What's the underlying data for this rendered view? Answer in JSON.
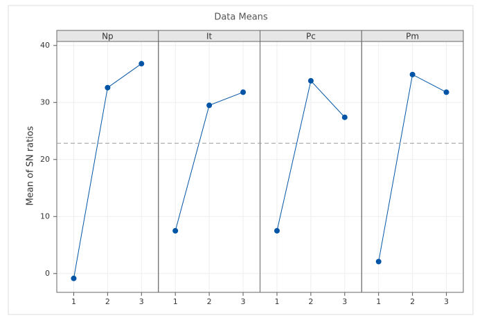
{
  "chart_data": {
    "type": "line",
    "title": "Data Means",
    "ylabel": "Mean of SN ratios",
    "categories": [
      "1",
      "2",
      "3"
    ],
    "series": [
      {
        "name": "Np",
        "color": "#0054a6",
        "values": [
          -0.85,
          32.6,
          36.8
        ]
      },
      {
        "name": "It",
        "color": "#0054a6",
        "values": [
          7.5,
          29.5,
          31.8
        ]
      },
      {
        "name": "Pc",
        "color": "#0054a6",
        "values": [
          7.5,
          33.8,
          27.4
        ]
      },
      {
        "name": "Pm",
        "color": "#0054a6",
        "values": [
          2.1,
          34.9,
          31.8
        ]
      }
    ],
    "reference_line": 22.85,
    "ylim": [
      -3.3,
      40.7
    ],
    "yticks": [
      0,
      10,
      20,
      30,
      40
    ],
    "grid": true
  }
}
